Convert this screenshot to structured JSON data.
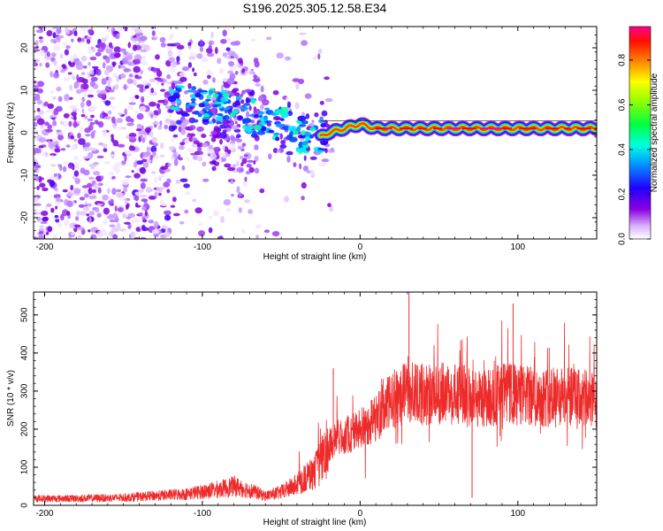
{
  "figure": {
    "title": "S196.2025.305.12.58.E34"
  },
  "chart_data": [
    {
      "id": "spectrogram",
      "type": "heatmap",
      "title": "S196.2025.305.12.58.E34",
      "xlabel": "Height of straight line (km)",
      "ylabel": "Frequency (Hz)",
      "xlim": [
        -207,
        150
      ],
      "ylim": [
        -25,
        25
      ],
      "xticks": [
        -200,
        -100,
        0,
        100
      ],
      "yticks": [
        -20,
        -10,
        0,
        10,
        20
      ],
      "xtick_labels": [
        "-200",
        "-100",
        "0",
        "100"
      ],
      "ytick_labels": [
        "-20",
        "-10",
        "0",
        "10",
        "20"
      ],
      "colorbar": {
        "label": "Normalized spectral amplitude",
        "range": [
          0,
          0.95
        ],
        "ticks": [
          0.0,
          0.2,
          0.4,
          0.6,
          0.8
        ],
        "tick_labels": [
          "0.0",
          "0.2",
          "0.4",
          "0.6",
          "0.8"
        ],
        "colormap": [
          "#f5ecff",
          "#8a00e0",
          "#2200ff",
          "#00e8ff",
          "#00ff40",
          "#ffff00",
          "#ff8000",
          "#ff0000",
          "#ff0080"
        ]
      },
      "ridge": {
        "description_values": "dominant frequency (Hz) vs height (km)",
        "x": [
          -110,
          -90,
          -70,
          -50,
          -30,
          -20,
          -10,
          0,
          10,
          30,
          50,
          70,
          90,
          110,
          130,
          150
        ],
        "y": [
          7,
          6,
          4,
          2,
          -2,
          0,
          1,
          2,
          1,
          1,
          1,
          1,
          1,
          1,
          1,
          1
        ]
      }
    },
    {
      "id": "snr",
      "type": "line",
      "xlabel": "Height of straight line (km)",
      "ylabel": "SNR (10 * v/v)",
      "xlim": [
        -207,
        150
      ],
      "ylim": [
        0,
        560
      ],
      "xticks": [
        -200,
        -100,
        0,
        100
      ],
      "yticks": [
        0,
        100,
        200,
        300,
        400,
        500
      ],
      "xtick_labels": [
        "-200",
        "-100",
        "0",
        "100"
      ],
      "ytick_labels": [
        "0",
        "100",
        "200",
        "300",
        "400",
        "500"
      ],
      "color": "#ee2b2b",
      "series": [
        {
          "name": "SNR",
          "x": [
            -207,
            -180,
            -150,
            -130,
            -110,
            -90,
            -80,
            -70,
            -60,
            -50,
            -40,
            -30,
            -25,
            -20,
            -15,
            -10,
            -5,
            0,
            10,
            20,
            30,
            40,
            50,
            60,
            70,
            80,
            90,
            100,
            110,
            120,
            130,
            140,
            150
          ],
          "y": [
            18,
            18,
            20,
            25,
            30,
            42,
            50,
            40,
            25,
            35,
            55,
            85,
            110,
            160,
            175,
            185,
            190,
            200,
            230,
            275,
            300,
            290,
            295,
            290,
            285,
            280,
            295,
            290,
            285,
            285,
            285,
            280,
            275
          ]
        }
      ],
      "annotations": [
        {
          "x": 31,
          "y": 560
        },
        {
          "x": 97,
          "y": 530
        },
        {
          "x": 71,
          "y": 20
        },
        {
          "x": -17,
          "y": 360
        }
      ]
    }
  ]
}
